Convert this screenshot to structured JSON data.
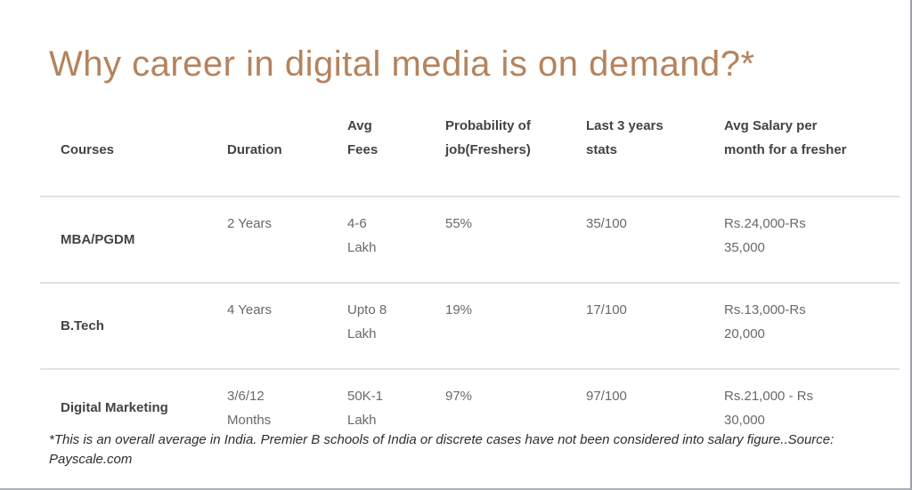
{
  "page": {
    "title": "Why career in digital media is on demand?*",
    "footnote": "*This is an overall average in India. Premier B schools of India or discrete cases have not been considered into salary figure..Source:\nPayscale.com"
  },
  "colors": {
    "title_accent": "#b5835d",
    "header_text": "#404448",
    "body_text": "#666a6e",
    "row_divider": "#e2e2e2",
    "frame_edge": "#99a2ac"
  },
  "table": {
    "columns": [
      "Courses",
      "Duration",
      "Avg\nFees",
      "Probability of\njob(Freshers)",
      "Last 3 years\nstats",
      "Avg Salary per\nmonth for a fresher"
    ],
    "rows": [
      {
        "course": "MBA/PGDM",
        "duration": "2 Years",
        "avg_fees": "4-6\nLakh",
        "job_probability": "55%",
        "last_3_years_stats": "35/100",
        "avg_salary": "Rs.24,000-Rs\n35,000"
      },
      {
        "course": "B.Tech",
        "duration": "4 Years",
        "avg_fees": "Upto 8\nLakh",
        "job_probability": "19%",
        "last_3_years_stats": "17/100",
        "avg_salary": "Rs.13,000-Rs\n20,000"
      },
      {
        "course": "Digital Marketing",
        "duration": "3/6/12\nMonths",
        "avg_fees": "50K-1\nLakh",
        "job_probability": "97%",
        "last_3_years_stats": "97/100",
        "avg_salary": "Rs.21,000 - Rs\n30,000"
      }
    ]
  }
}
